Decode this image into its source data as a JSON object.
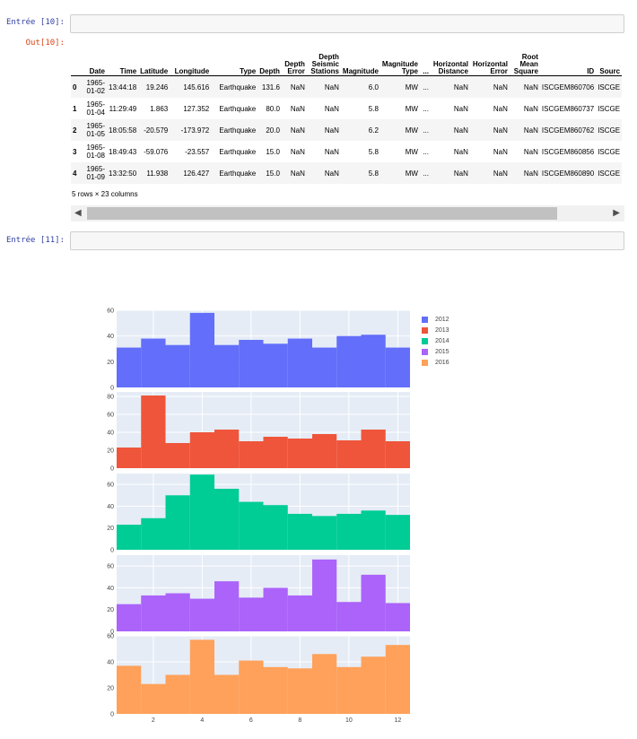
{
  "cells": {
    "in10_prompt": "Entrée [10]:",
    "out10_prompt": "Out[10]:",
    "in11_prompt": "Entrée [11]:"
  },
  "dataframe": {
    "headers": [
      "",
      "Date",
      "Time",
      "Latitude",
      "Longitude",
      "Type",
      "Depth",
      "Depth Error",
      "Depth Seismic Stations",
      "Magnitude",
      "Magnitude Type",
      "...",
      "Horizontal Distance",
      "Horizontal Error",
      "Root Mean Square",
      "ID",
      "Sourc"
    ],
    "rows": [
      [
        "0",
        "1965-01-02",
        "13:44:18",
        "19.246",
        "145.616",
        "Earthquake",
        "131.6",
        "NaN",
        "NaN",
        "6.0",
        "MW",
        "...",
        "NaN",
        "NaN",
        "NaN",
        "ISCGEM860706",
        "ISCGE"
      ],
      [
        "1",
        "1965-01-04",
        "11:29:49",
        "1.863",
        "127.352",
        "Earthquake",
        "80.0",
        "NaN",
        "NaN",
        "5.8",
        "MW",
        "...",
        "NaN",
        "NaN",
        "NaN",
        "ISCGEM860737",
        "ISCGE"
      ],
      [
        "2",
        "1965-01-05",
        "18:05:58",
        "-20.579",
        "-173.972",
        "Earthquake",
        "20.0",
        "NaN",
        "NaN",
        "6.2",
        "MW",
        "...",
        "NaN",
        "NaN",
        "NaN",
        "ISCGEM860762",
        "ISCGE"
      ],
      [
        "3",
        "1965-01-08",
        "18:49:43",
        "-59.076",
        "-23.557",
        "Earthquake",
        "15.0",
        "NaN",
        "NaN",
        "5.8",
        "MW",
        "...",
        "NaN",
        "NaN",
        "NaN",
        "ISCGEM860856",
        "ISCGE"
      ],
      [
        "4",
        "1965-01-09",
        "13:32:50",
        "11.938",
        "126.427",
        "Earthquake",
        "15.0",
        "NaN",
        "NaN",
        "5.8",
        "MW",
        "...",
        "NaN",
        "NaN",
        "NaN",
        "ISCGEM860890",
        "ISCGE"
      ]
    ],
    "footer": "5 rows × 23 columns"
  },
  "scrollbar": {
    "left_arrow": "◀",
    "right_arrow": "▶"
  },
  "chart_data": {
    "type": "bar",
    "x": [
      1,
      2,
      3,
      4,
      5,
      6,
      7,
      8,
      9,
      10,
      11,
      12
    ],
    "xticks": [
      2,
      4,
      6,
      8,
      10,
      12
    ],
    "xlim": [
      0.5,
      12.5
    ],
    "legend_position": "top-right",
    "series": [
      {
        "name": "2012",
        "color": "#636efa",
        "values": [
          31,
          38,
          33,
          58,
          33,
          37,
          34,
          38,
          31,
          40,
          41,
          31
        ],
        "ylim": [
          0,
          60
        ],
        "yticks": [
          0,
          20,
          40,
          60
        ]
      },
      {
        "name": "2013",
        "color": "#ef553b",
        "values": [
          23,
          81,
          28,
          40,
          43,
          30,
          35,
          33,
          38,
          31,
          43,
          30
        ],
        "ylim": [
          0,
          85
        ],
        "yticks": [
          0,
          20,
          40,
          60,
          80
        ]
      },
      {
        "name": "2014",
        "color": "#00cc96",
        "values": [
          23,
          29,
          50,
          69,
          56,
          44,
          41,
          33,
          31,
          33,
          36,
          32
        ],
        "ylim": [
          0,
          70
        ],
        "yticks": [
          0,
          20,
          40,
          60
        ]
      },
      {
        "name": "2015",
        "color": "#ab63fa",
        "values": [
          25,
          33,
          35,
          30,
          46,
          31,
          40,
          33,
          66,
          27,
          52,
          26
        ],
        "ylim": [
          0,
          70
        ],
        "yticks": [
          0,
          20,
          40,
          60
        ]
      },
      {
        "name": "2016",
        "color": "#ffa15a",
        "values": [
          37,
          23,
          30,
          57,
          30,
          41,
          36,
          35,
          46,
          36,
          44,
          53
        ],
        "ylim": [
          0,
          60
        ],
        "yticks": [
          0,
          20,
          40,
          60
        ]
      }
    ]
  }
}
